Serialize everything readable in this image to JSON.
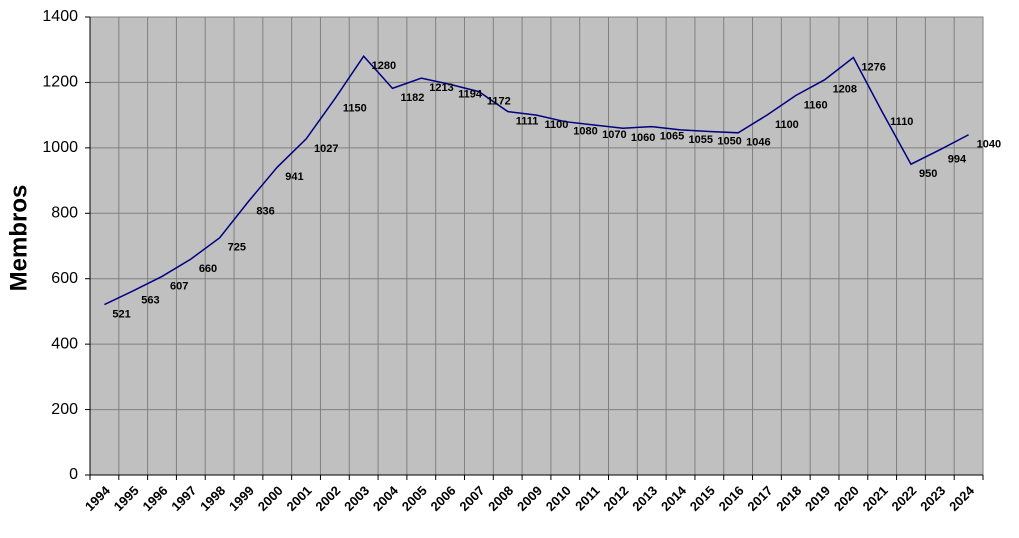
{
  "chart_data": {
    "type": "line",
    "y_label": "Membros",
    "categories": [
      "1994",
      "1995",
      "1996",
      "1997",
      "1998",
      "1999",
      "2000",
      "2001",
      "2002",
      "2003",
      "2004",
      "2005",
      "2006",
      "2007",
      "2008",
      "2009",
      "2010",
      "2011",
      "2012",
      "2013",
      "2014",
      "2015",
      "2016",
      "2017",
      "2018",
      "2019",
      "2020",
      "2021",
      "2022",
      "2023",
      "2024"
    ],
    "values": [
      521,
      563,
      607,
      660,
      725,
      836,
      941,
      1027,
      1150,
      1280,
      1182,
      1213,
      1194,
      1172,
      1111,
      1100,
      1080,
      1070,
      1060,
      1065,
      1055,
      1050,
      1046,
      1100,
      1160,
      1208,
      1276,
      1110,
      950,
      994,
      1040
    ],
    "color": "#000080",
    "background": "#c0c0c0",
    "ylim": [
      0,
      1400
    ],
    "yticks": [
      0,
      200,
      400,
      600,
      800,
      1000,
      1200,
      1400
    ],
    "grid": true
  }
}
